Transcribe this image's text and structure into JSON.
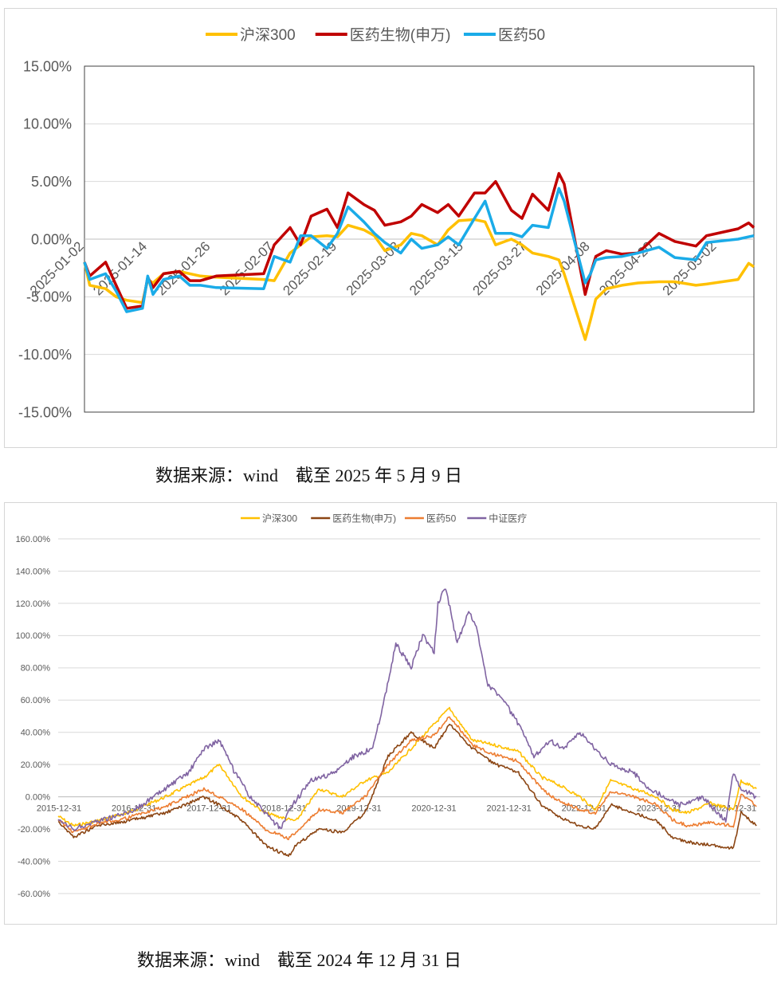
{
  "colors": {
    "hs300": "#FFC000",
    "sw_pharma": "#C00000",
    "pharma50": "#1AABE8",
    "sw_pharma_long": "#8B4513",
    "pharma50_long": "#ED7D31",
    "csi_medical": "#8064A2"
  },
  "captions": {
    "chart1": "数据来源：wind　截至 2025 年 5 月 9 日",
    "chart2": "数据来源：wind　截至 2024 年 12 月 31 日"
  },
  "chart_data": [
    {
      "type": "line",
      "title": "",
      "legend_position": "top",
      "grid": true,
      "ylim": [
        -15,
        15
      ],
      "y_ticks": [
        15,
        10,
        5,
        0,
        -5,
        -10,
        -15
      ],
      "y_tick_labels": [
        "15.00%",
        "10.00%",
        "5.00%",
        "0.00%",
        "-5.00%",
        "-10.00%",
        "-15.00%"
      ],
      "x_range": [
        "2025-01-02",
        "2025-05-09"
      ],
      "x_tick_labels": [
        "2025-01-02",
        "2025-01-14",
        "2025-01-26",
        "2025-02-07",
        "2025-02-19",
        "2025-03-03",
        "2025-03-15",
        "2025-03-27",
        "2025-04-08",
        "2025-04-20",
        "2025-05-02"
      ],
      "series": [
        {
          "name": "沪深300",
          "color": "#FFC000",
          "x": [
            "2025-01-02",
            "2025-01-03",
            "2025-01-06",
            "2025-01-08",
            "2025-01-10",
            "2025-01-13",
            "2025-01-14",
            "2025-01-15",
            "2025-01-17",
            "2025-01-20",
            "2025-01-22",
            "2025-01-24",
            "2025-01-27",
            "2025-02-05",
            "2025-02-07",
            "2025-02-10",
            "2025-02-12",
            "2025-02-14",
            "2025-02-17",
            "2025-02-19",
            "2025-02-21",
            "2025-02-24",
            "2025-02-26",
            "2025-02-28",
            "2025-03-03",
            "2025-03-05",
            "2025-03-07",
            "2025-03-10",
            "2025-03-12",
            "2025-03-14",
            "2025-03-17",
            "2025-03-19",
            "2025-03-21",
            "2025-03-24",
            "2025-03-26",
            "2025-03-28",
            "2025-03-31",
            "2025-04-02",
            "2025-04-03",
            "2025-04-07",
            "2025-04-08",
            "2025-04-09",
            "2025-04-11",
            "2025-04-14",
            "2025-04-17",
            "2025-04-21",
            "2025-04-24",
            "2025-04-28",
            "2025-04-30",
            "2025-05-06",
            "2025-05-08",
            "2025-05-09"
          ],
          "y": [
            -2.0,
            -4.0,
            -4.3,
            -5.0,
            -5.3,
            -5.5,
            -3.5,
            -3.8,
            -3.0,
            -2.8,
            -3.0,
            -3.2,
            -3.3,
            -3.5,
            -3.6,
            -1.2,
            -0.5,
            0.2,
            0.3,
            0.2,
            1.2,
            0.8,
            0.3,
            -1.0,
            -0.5,
            0.5,
            0.3,
            -0.5,
            0.8,
            1.6,
            1.7,
            1.5,
            -0.5,
            0.0,
            -0.5,
            -1.2,
            -1.5,
            -1.8,
            -3.0,
            -8.7,
            -7.0,
            -5.2,
            -4.3,
            -4.0,
            -3.8,
            -3.7,
            -3.7,
            -4.0,
            -3.9,
            -3.5,
            -2.1,
            -2.4
          ]
        },
        {
          "name": "医药生物(申万)",
          "color": "#C00000",
          "x": [
            "2025-01-02",
            "2025-01-03",
            "2025-01-06",
            "2025-01-08",
            "2025-01-10",
            "2025-01-13",
            "2025-01-14",
            "2025-01-15",
            "2025-01-17",
            "2025-01-20",
            "2025-01-22",
            "2025-01-24",
            "2025-01-27",
            "2025-02-05",
            "2025-02-07",
            "2025-02-10",
            "2025-02-12",
            "2025-02-14",
            "2025-02-17",
            "2025-02-19",
            "2025-02-21",
            "2025-02-24",
            "2025-02-26",
            "2025-02-28",
            "2025-03-03",
            "2025-03-05",
            "2025-03-07",
            "2025-03-10",
            "2025-03-12",
            "2025-03-14",
            "2025-03-17",
            "2025-03-19",
            "2025-03-21",
            "2025-03-24",
            "2025-03-26",
            "2025-03-28",
            "2025-03-31",
            "2025-04-02",
            "2025-04-03",
            "2025-04-07",
            "2025-04-08",
            "2025-04-09",
            "2025-04-11",
            "2025-04-14",
            "2025-04-17",
            "2025-04-21",
            "2025-04-24",
            "2025-04-28",
            "2025-04-30",
            "2025-05-06",
            "2025-05-08",
            "2025-05-09"
          ],
          "y": [
            -2.0,
            -3.2,
            -2.0,
            -4.0,
            -6.0,
            -5.8,
            -3.3,
            -4.2,
            -3.0,
            -2.8,
            -3.6,
            -3.6,
            -3.2,
            -3.0,
            -0.5,
            1.0,
            -0.5,
            2.0,
            2.6,
            1.0,
            4.0,
            3.0,
            2.5,
            1.2,
            1.5,
            2.0,
            3.0,
            2.3,
            3.0,
            2.0,
            4.0,
            4.0,
            5.0,
            2.5,
            1.8,
            3.9,
            2.5,
            5.7,
            4.8,
            -4.8,
            -3.0,
            -1.5,
            -1.0,
            -1.3,
            -1.2,
            0.5,
            -0.2,
            -0.6,
            0.3,
            0.9,
            1.4,
            1.0
          ]
        },
        {
          "name": "医药50",
          "color": "#1AABE8",
          "x": [
            "2025-01-02",
            "2025-01-03",
            "2025-01-06",
            "2025-01-08",
            "2025-01-10",
            "2025-01-13",
            "2025-01-14",
            "2025-01-15",
            "2025-01-17",
            "2025-01-20",
            "2025-01-22",
            "2025-01-24",
            "2025-01-27",
            "2025-02-05",
            "2025-02-07",
            "2025-02-10",
            "2025-02-12",
            "2025-02-14",
            "2025-02-17",
            "2025-02-19",
            "2025-02-21",
            "2025-02-24",
            "2025-02-26",
            "2025-02-28",
            "2025-03-03",
            "2025-03-05",
            "2025-03-07",
            "2025-03-10",
            "2025-03-12",
            "2025-03-14",
            "2025-03-17",
            "2025-03-19",
            "2025-03-21",
            "2025-03-24",
            "2025-03-26",
            "2025-03-28",
            "2025-03-31",
            "2025-04-02",
            "2025-04-03",
            "2025-04-07",
            "2025-04-08",
            "2025-04-09",
            "2025-04-11",
            "2025-04-14",
            "2025-04-17",
            "2025-04-21",
            "2025-04-24",
            "2025-04-28",
            "2025-04-30",
            "2025-05-06",
            "2025-05-08",
            "2025-05-09"
          ],
          "y": [
            -2.0,
            -3.5,
            -3.0,
            -4.5,
            -6.3,
            -6.0,
            -3.2,
            -4.8,
            -3.5,
            -3.2,
            -4.0,
            -4.0,
            -4.2,
            -4.3,
            -1.5,
            -2.0,
            0.3,
            0.3,
            -0.8,
            0.5,
            2.8,
            1.5,
            0.5,
            -0.3,
            -1.2,
            0.0,
            -0.8,
            -0.5,
            0.2,
            -0.5,
            1.8,
            3.3,
            0.5,
            0.5,
            0.2,
            1.2,
            1.0,
            4.4,
            3.3,
            -3.8,
            -3.0,
            -1.8,
            -1.6,
            -1.5,
            -1.2,
            -0.7,
            -1.6,
            -1.8,
            -0.3,
            0.0,
            0.2,
            0.3
          ]
        }
      ]
    },
    {
      "type": "line",
      "title": "",
      "legend_position": "top",
      "grid": true,
      "ylim": [
        -60,
        160
      ],
      "y_ticks": [
        160,
        140,
        120,
        100,
        80,
        60,
        40,
        20,
        0,
        -20,
        -40,
        -60
      ],
      "y_tick_labels": [
        "160.00%",
        "140.00%",
        "120.00%",
        "100.00%",
        "80.00%",
        "60.00%",
        "40.00%",
        "20.00%",
        "0.00%",
        "-20.00%",
        "-40.00%",
        "-60.00%"
      ],
      "x_range": [
        2015.9,
        2025.05
      ],
      "x_tick_labels": [
        "2015-12-31",
        "2016-12-31",
        "2017-12-31",
        "2018-12-31",
        "2019-12-31",
        "2020-12-31",
        "2021-12-31",
        "2022-12-31",
        "2023-12-31",
        "2024-12-31"
      ],
      "series": [
        {
          "name": "沪深300",
          "color": "#FFC000",
          "x": [
            2015.9,
            2016.1,
            2016.4,
            2016.8,
            2017.3,
            2017.8,
            2018.0,
            2018.3,
            2018.6,
            2018.9,
            2019.0,
            2019.3,
            2019.6,
            2019.9,
            2020.2,
            2020.5,
            2020.8,
            2021.0,
            2021.1,
            2021.3,
            2021.6,
            2021.9,
            2022.2,
            2022.4,
            2022.7,
            2022.9,
            2023.1,
            2023.4,
            2023.7,
            2023.9,
            2024.1,
            2024.4,
            2024.7,
            2024.8,
            2025.0
          ],
          "y": [
            -12,
            -18,
            -15,
            -10,
            0,
            12,
            20,
            0,
            -10,
            -14,
            -15,
            5,
            0,
            10,
            15,
            30,
            45,
            55,
            48,
            35,
            32,
            28,
            12,
            8,
            0,
            -8,
            10,
            5,
            0,
            -8,
            -10,
            -4,
            -8,
            10,
            5
          ]
        },
        {
          "name": "医药生物(申万)",
          "color": "#8B4513",
          "x": [
            2015.9,
            2016.1,
            2016.4,
            2016.8,
            2017.3,
            2017.8,
            2018.0,
            2018.3,
            2018.6,
            2018.9,
            2019.0,
            2019.3,
            2019.6,
            2019.9,
            2020.2,
            2020.5,
            2020.8,
            2021.0,
            2021.1,
            2021.3,
            2021.6,
            2021.9,
            2022.2,
            2022.4,
            2022.7,
            2022.9,
            2023.1,
            2023.4,
            2023.7,
            2023.9,
            2024.1,
            2024.4,
            2024.7,
            2024.8,
            2025.0
          ],
          "y": [
            -15,
            -25,
            -18,
            -15,
            -10,
            0,
            -5,
            -15,
            -30,
            -37,
            -30,
            -20,
            -22,
            -10,
            25,
            40,
            30,
            45,
            40,
            30,
            20,
            15,
            -5,
            -12,
            -18,
            -20,
            -5,
            -10,
            -15,
            -25,
            -28,
            -30,
            -32,
            -10,
            -18
          ]
        },
        {
          "name": "医药50",
          "color": "#ED7D31",
          "x": [
            2015.9,
            2016.1,
            2016.4,
            2016.8,
            2017.3,
            2017.8,
            2018.0,
            2018.3,
            2018.6,
            2018.9,
            2019.0,
            2019.3,
            2019.6,
            2019.9,
            2020.2,
            2020.5,
            2020.8,
            2021.0,
            2021.1,
            2021.3,
            2021.6,
            2021.9,
            2022.2,
            2022.4,
            2022.7,
            2022.9,
            2023.1,
            2023.4,
            2023.7,
            2023.9,
            2024.1,
            2024.4,
            2024.7,
            2024.8,
            2025.0
          ],
          "y": [
            -14,
            -22,
            -17,
            -13,
            -6,
            5,
            0,
            -8,
            -20,
            -26,
            -22,
            -8,
            -10,
            0,
            20,
            35,
            38,
            50,
            44,
            32,
            26,
            22,
            5,
            -2,
            -8,
            -10,
            3,
            0,
            -5,
            -14,
            -18,
            -16,
            -18,
            2,
            -6
          ]
        },
        {
          "name": "中证医疗",
          "color": "#8064A2",
          "x": [
            2015.9,
            2016.1,
            2016.4,
            2016.8,
            2017.0,
            2017.3,
            2017.6,
            2017.8,
            2018.0,
            2018.2,
            2018.4,
            2018.6,
            2018.8,
            2018.95,
            2019.2,
            2019.5,
            2019.75,
            2020.0,
            2020.15,
            2020.3,
            2020.5,
            2020.65,
            2020.8,
            2020.85,
            2020.95,
            2021.1,
            2021.25,
            2021.35,
            2021.5,
            2021.7,
            2021.9,
            2022.1,
            2022.3,
            2022.5,
            2022.7,
            2022.9,
            2023.1,
            2023.4,
            2023.6,
            2023.8,
            2024.0,
            2024.3,
            2024.5,
            2024.6,
            2024.7,
            2024.8,
            2025.0
          ],
          "y": [
            -15,
            -20,
            -15,
            -10,
            -5,
            5,
            15,
            30,
            35,
            15,
            0,
            -10,
            -20,
            -5,
            10,
            15,
            25,
            30,
            60,
            95,
            80,
            100,
            90,
            120,
            130,
            95,
            115,
            105,
            70,
            60,
            45,
            25,
            35,
            30,
            40,
            30,
            20,
            15,
            5,
            0,
            -5,
            0,
            -10,
            -15,
            15,
            5,
            0
          ]
        }
      ]
    }
  ]
}
